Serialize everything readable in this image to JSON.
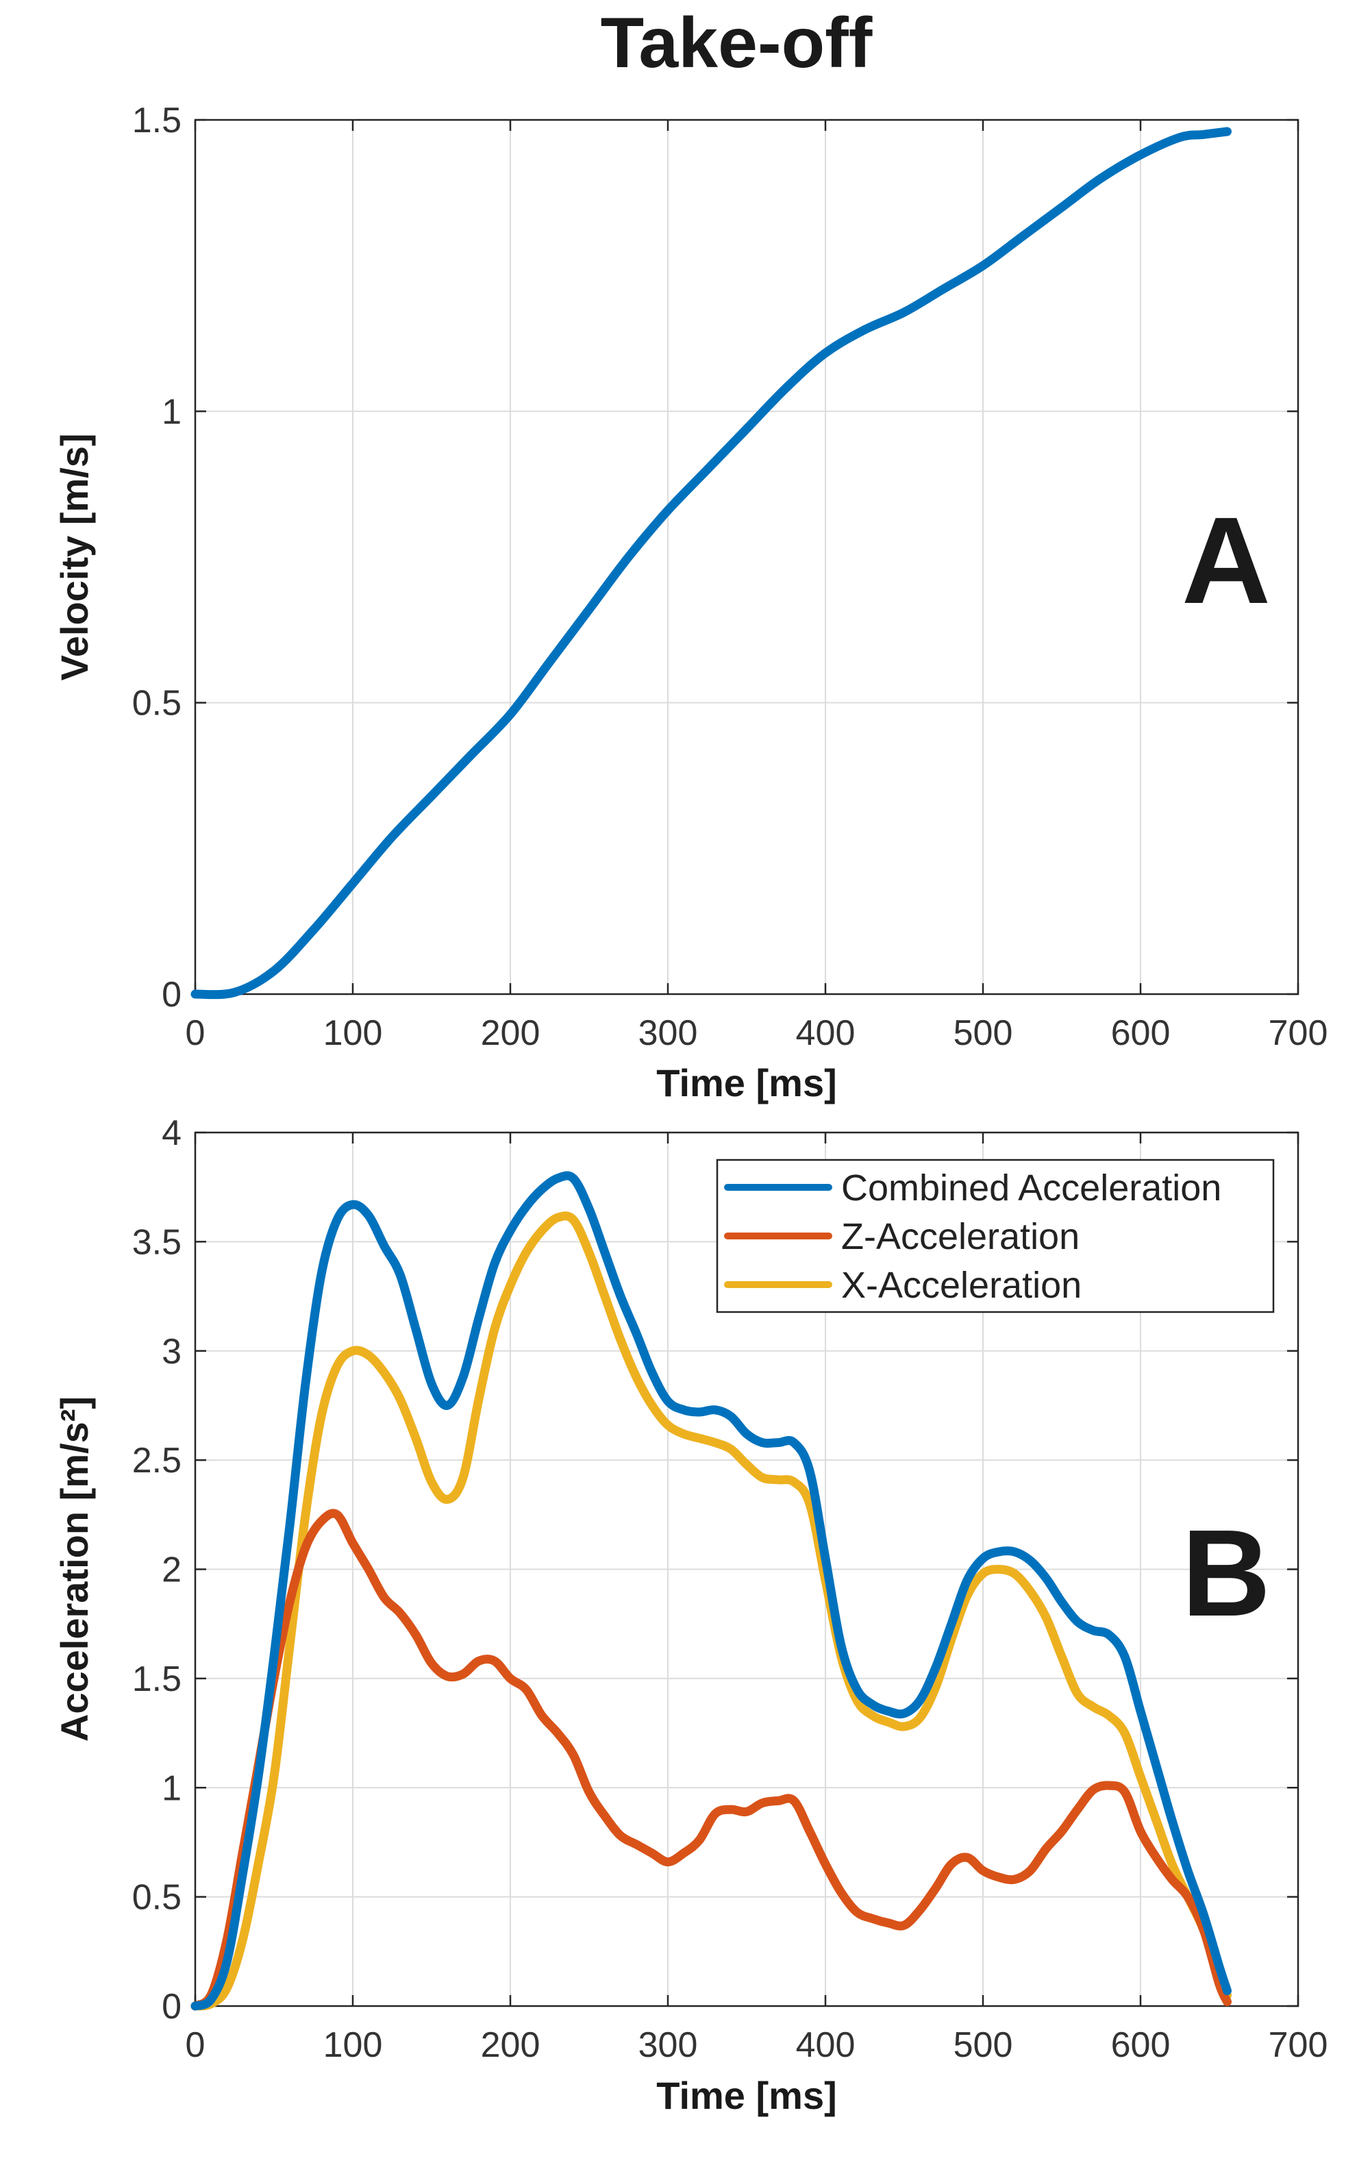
{
  "figure_title": "Take-off",
  "chart_data": [
    {
      "type": "line",
      "panel": "A",
      "xlabel": "Time [ms]",
      "ylabel": "Velocity [m/s]",
      "xlim": [
        0,
        700
      ],
      "ylim": [
        0,
        1.5
      ],
      "xticks": [
        0,
        100,
        200,
        300,
        400,
        500,
        600,
        700
      ],
      "yticks": [
        0,
        0.5,
        1,
        1.5
      ],
      "ytick_labels": [
        "0",
        "0.5",
        "1",
        "1.5"
      ],
      "grid": true,
      "series": [
        {
          "name": "Velocity",
          "color": "#0072BD",
          "x": [
            0,
            25,
            50,
            75,
            100,
            125,
            150,
            175,
            200,
            225,
            250,
            275,
            300,
            325,
            350,
            375,
            400,
            425,
            450,
            475,
            500,
            525,
            550,
            575,
            600,
            625,
            640,
            655
          ],
          "y": [
            0,
            0.003,
            0.04,
            0.11,
            0.19,
            0.27,
            0.34,
            0.41,
            0.48,
            0.57,
            0.66,
            0.75,
            0.83,
            0.9,
            0.97,
            1.04,
            1.1,
            1.14,
            1.17,
            1.21,
            1.25,
            1.3,
            1.35,
            1.4,
            1.44,
            1.47,
            1.475,
            1.48
          ]
        }
      ]
    },
    {
      "type": "line",
      "panel": "B",
      "xlabel": "Time [ms]",
      "ylabel": "Acceleration [m/s²]",
      "xlim": [
        0,
        700
      ],
      "ylim": [
        0,
        4
      ],
      "xticks": [
        0,
        100,
        200,
        300,
        400,
        500,
        600,
        700
      ],
      "yticks": [
        0,
        0.5,
        1,
        1.5,
        2,
        2.5,
        3,
        3.5,
        4
      ],
      "ytick_labels": [
        "0",
        "0.5",
        "1",
        "1.5",
        "2",
        "2.5",
        "3",
        "3.5",
        "4"
      ],
      "grid": true,
      "legend_position": "top-right",
      "series": [
        {
          "name": "Combined Acceleration",
          "color": "#0072BD",
          "x": [
            0,
            10,
            20,
            30,
            40,
            50,
            60,
            70,
            80,
            90,
            100,
            110,
            120,
            130,
            140,
            150,
            160,
            170,
            180,
            190,
            200,
            210,
            220,
            230,
            240,
            250,
            260,
            270,
            280,
            290,
            300,
            310,
            320,
            330,
            340,
            350,
            360,
            370,
            380,
            390,
            400,
            410,
            420,
            430,
            440,
            450,
            460,
            470,
            480,
            490,
            500,
            510,
            520,
            530,
            540,
            550,
            560,
            570,
            580,
            590,
            600,
            610,
            620,
            630,
            640,
            650,
            655
          ],
          "y": [
            0,
            0.03,
            0.2,
            0.6,
            1.05,
            1.6,
            2.2,
            2.85,
            3.35,
            3.6,
            3.67,
            3.62,
            3.48,
            3.35,
            3.1,
            2.85,
            2.75,
            2.88,
            3.15,
            3.4,
            3.55,
            3.66,
            3.74,
            3.79,
            3.79,
            3.65,
            3.45,
            3.25,
            3.08,
            2.9,
            2.77,
            2.73,
            2.72,
            2.73,
            2.7,
            2.62,
            2.58,
            2.58,
            2.58,
            2.45,
            2.05,
            1.65,
            1.45,
            1.38,
            1.35,
            1.34,
            1.4,
            1.55,
            1.75,
            1.95,
            2.05,
            2.08,
            2.08,
            2.04,
            1.96,
            1.85,
            1.76,
            1.72,
            1.7,
            1.6,
            1.35,
            1.1,
            0.85,
            0.62,
            0.42,
            0.18,
            0.07
          ]
        },
        {
          "name": "Z-Acceleration",
          "color": "#D95319",
          "x": [
            0,
            10,
            20,
            30,
            40,
            50,
            60,
            70,
            80,
            90,
            100,
            110,
            120,
            130,
            140,
            150,
            160,
            170,
            180,
            190,
            200,
            210,
            220,
            230,
            240,
            250,
            260,
            270,
            280,
            290,
            300,
            310,
            320,
            330,
            340,
            350,
            360,
            370,
            380,
            390,
            400,
            410,
            420,
            430,
            440,
            450,
            460,
            470,
            480,
            490,
            500,
            510,
            520,
            530,
            540,
            550,
            560,
            570,
            580,
            590,
            600,
            610,
            620,
            630,
            640,
            650,
            655
          ],
          "y": [
            0,
            0.05,
            0.3,
            0.7,
            1.1,
            1.5,
            1.85,
            2.1,
            2.22,
            2.25,
            2.12,
            2.0,
            1.87,
            1.8,
            1.7,
            1.57,
            1.51,
            1.52,
            1.58,
            1.58,
            1.5,
            1.45,
            1.33,
            1.25,
            1.15,
            0.98,
            0.87,
            0.78,
            0.74,
            0.7,
            0.66,
            0.7,
            0.76,
            0.88,
            0.9,
            0.89,
            0.93,
            0.94,
            0.94,
            0.8,
            0.65,
            0.52,
            0.43,
            0.4,
            0.38,
            0.37,
            0.44,
            0.54,
            0.65,
            0.68,
            0.62,
            0.59,
            0.58,
            0.62,
            0.72,
            0.8,
            0.9,
            0.99,
            1.01,
            0.98,
            0.8,
            0.68,
            0.58,
            0.5,
            0.35,
            0.1,
            0.02
          ]
        },
        {
          "name": "X-Acceleration",
          "color": "#EDB120",
          "x": [
            0,
            10,
            20,
            30,
            40,
            50,
            60,
            70,
            80,
            90,
            100,
            110,
            120,
            130,
            140,
            150,
            160,
            170,
            180,
            190,
            200,
            210,
            220,
            230,
            240,
            250,
            260,
            270,
            280,
            290,
            300,
            310,
            320,
            330,
            340,
            350,
            360,
            370,
            380,
            390,
            400,
            410,
            420,
            430,
            440,
            450,
            460,
            470,
            480,
            490,
            500,
            510,
            520,
            530,
            540,
            550,
            560,
            570,
            580,
            590,
            600,
            610,
            620,
            630,
            640,
            650,
            655
          ],
          "y": [
            0,
            0.01,
            0.08,
            0.3,
            0.65,
            1.05,
            1.65,
            2.25,
            2.7,
            2.93,
            3.0,
            2.98,
            2.9,
            2.78,
            2.6,
            2.4,
            2.32,
            2.42,
            2.78,
            3.1,
            3.3,
            3.45,
            3.55,
            3.61,
            3.6,
            3.45,
            3.25,
            3.05,
            2.88,
            2.75,
            2.66,
            2.62,
            2.6,
            2.58,
            2.55,
            2.48,
            2.42,
            2.41,
            2.4,
            2.3,
            1.95,
            1.6,
            1.4,
            1.33,
            1.3,
            1.28,
            1.32,
            1.46,
            1.68,
            1.88,
            1.98,
            2.0,
            1.98,
            1.9,
            1.78,
            1.6,
            1.43,
            1.37,
            1.33,
            1.25,
            1.05,
            0.85,
            0.65,
            0.5,
            0.35,
            0.15,
            0.05
          ]
        }
      ]
    }
  ]
}
